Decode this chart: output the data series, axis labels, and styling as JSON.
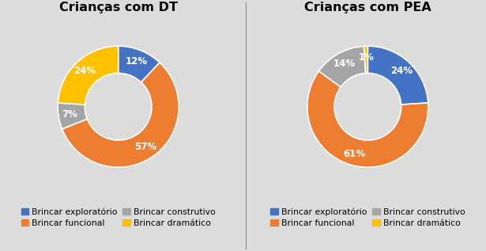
{
  "chart1": {
    "title": "Crianças com DT",
    "values": [
      12,
      57,
      7,
      24
    ],
    "labels": [
      "12%",
      "57%",
      "7%",
      "24%"
    ],
    "colors": [
      "#4472C4",
      "#ED7D31",
      "#A5A5A5",
      "#FFC000"
    ]
  },
  "chart2": {
    "title": "Crianças com PEA",
    "values": [
      24,
      61,
      14,
      1
    ],
    "labels": [
      "24%",
      "61%",
      "14%",
      "1%"
    ],
    "colors": [
      "#4472C4",
      "#ED7D31",
      "#A5A5A5",
      "#FFC000"
    ]
  },
  "legend_labels": [
    "Brincar exploratório",
    "Brincar funcional",
    "Brincar construtivo",
    "Brincar dramático"
  ],
  "legend_colors": [
    "#4472C4",
    "#ED7D31",
    "#A5A5A5",
    "#FFC000"
  ],
  "background_color": "#DCDCDC",
  "title_fontsize": 11.5,
  "label_fontsize": 8.5,
  "legend_fontsize": 7.8
}
